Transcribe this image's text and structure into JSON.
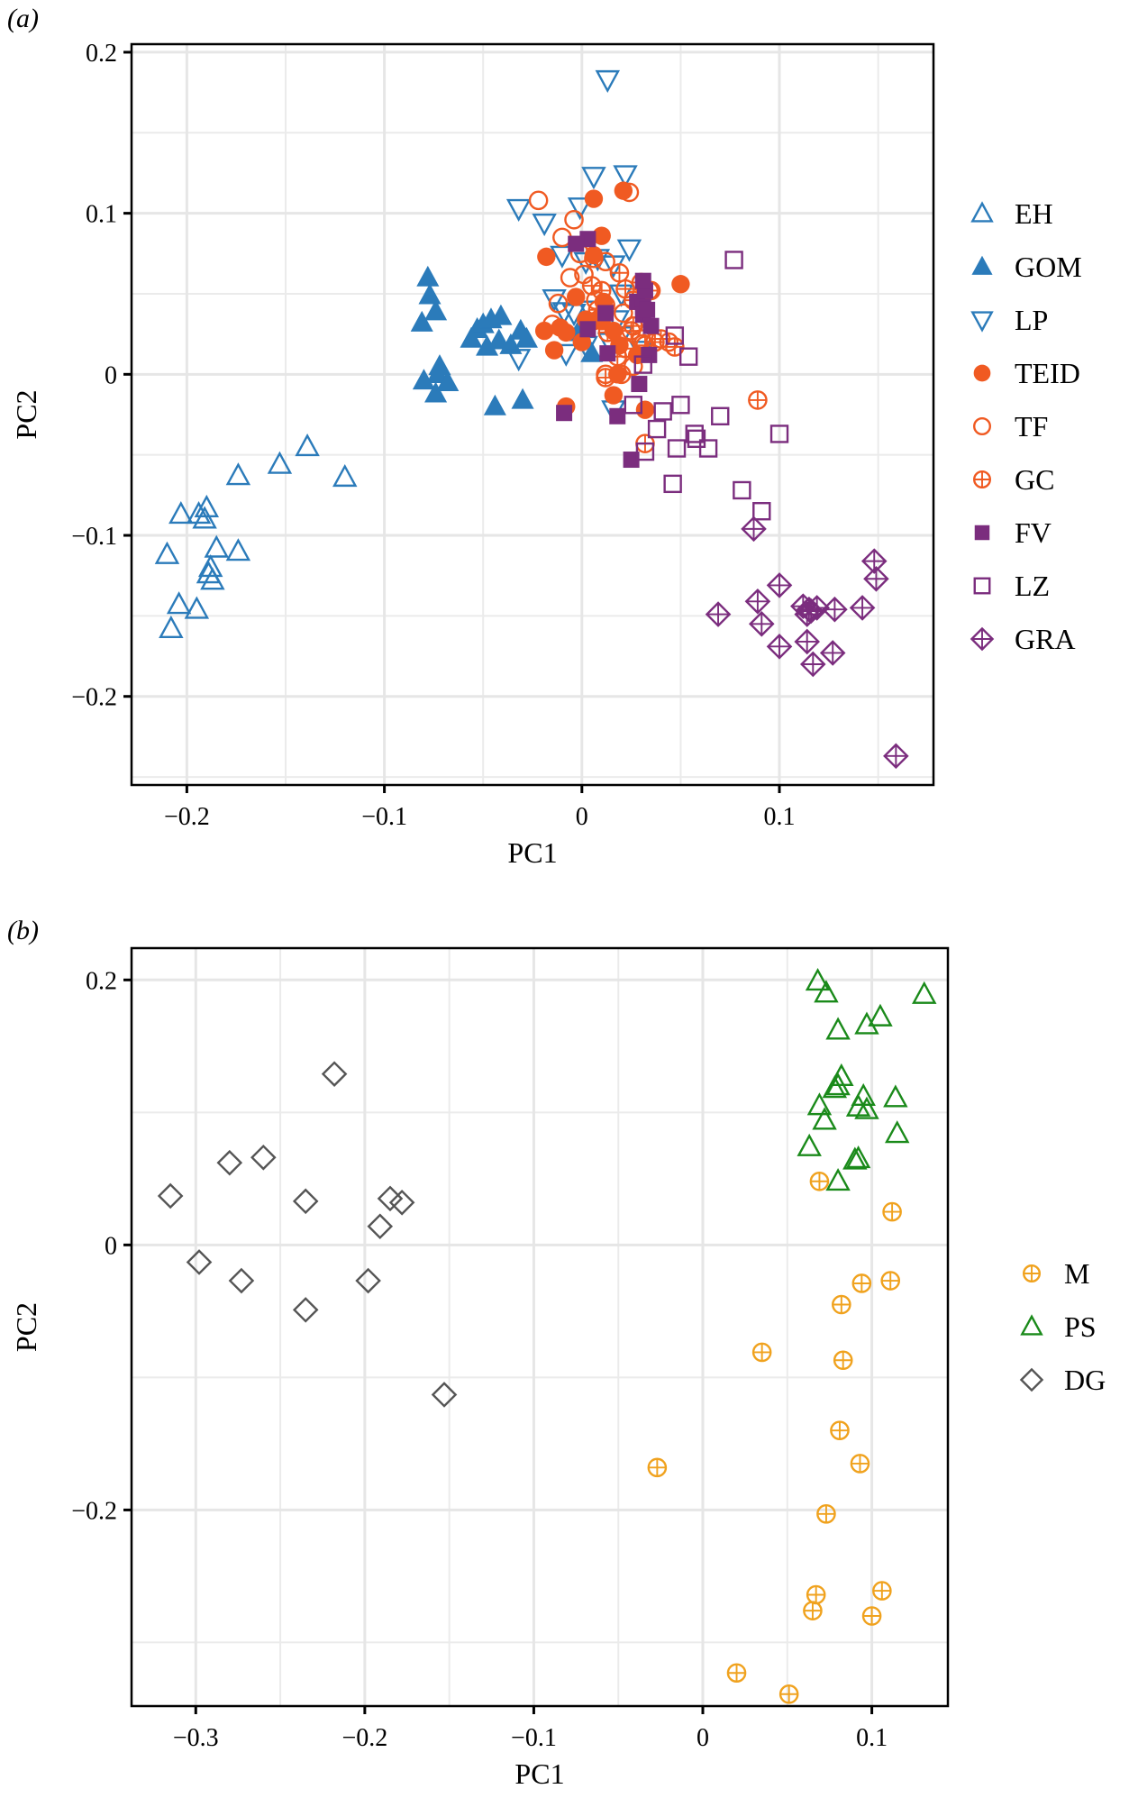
{
  "chart_data": [
    {
      "type": "scatter",
      "panel_label": "(a)",
      "xlabel": "PC1",
      "ylabel": "PC2",
      "xlim": [
        -0.228,
        0.178
      ],
      "ylim": [
        -0.255,
        0.205
      ],
      "xticks": [
        -0.2,
        -0.1,
        0,
        0.1
      ],
      "xtick_labels": [
        "−0.2",
        "−0.1",
        "0",
        "0.1"
      ],
      "yticks": [
        -0.2,
        -0.1,
        0,
        0.1,
        0.2
      ],
      "ytick_labels": [
        "−0.2",
        "−0.1",
        "0",
        "0.1",
        "0.2"
      ],
      "grid": true,
      "legend_position": "right",
      "series": [
        {
          "name": "EH",
          "marker": "triangle-open",
          "color": "#2b7bba",
          "points": [
            [
              -0.21,
              -0.112
            ],
            [
              -0.203,
              -0.087
            ],
            [
              -0.204,
              -0.143
            ],
            [
              -0.208,
              -0.158
            ],
            [
              -0.194,
              -0.087
            ],
            [
              -0.19,
              -0.083
            ],
            [
              -0.191,
              -0.09
            ],
            [
              -0.195,
              -0.146
            ],
            [
              -0.188,
              -0.12
            ],
            [
              -0.189,
              -0.124
            ],
            [
              -0.187,
              -0.128
            ],
            [
              -0.185,
              -0.108
            ],
            [
              -0.174,
              -0.11
            ],
            [
              -0.174,
              -0.063
            ],
            [
              -0.153,
              -0.056
            ],
            [
              -0.139,
              -0.045
            ],
            [
              -0.12,
              -0.064
            ]
          ]
        },
        {
          "name": "GOM",
          "marker": "triangle-filled",
          "color": "#2b7bba",
          "points": [
            [
              -0.078,
              0.06
            ],
            [
              -0.077,
              0.049
            ],
            [
              -0.074,
              0.039
            ],
            [
              -0.081,
              0.032
            ],
            [
              -0.072,
              0.005
            ],
            [
              -0.073,
              0.0
            ],
            [
              -0.08,
              -0.004
            ],
            [
              -0.074,
              -0.012
            ],
            [
              -0.068,
              -0.005
            ],
            [
              -0.056,
              0.022
            ],
            [
              -0.053,
              0.028
            ],
            [
              -0.05,
              0.031
            ],
            [
              -0.046,
              0.034
            ],
            [
              -0.041,
              0.036
            ],
            [
              -0.048,
              0.017
            ],
            [
              -0.042,
              0.021
            ],
            [
              -0.036,
              0.018
            ],
            [
              -0.031,
              0.027
            ],
            [
              -0.028,
              0.022
            ],
            [
              -0.044,
              -0.02
            ],
            [
              -0.03,
              -0.016
            ],
            [
              -0.002,
              0.026
            ],
            [
              0.005,
              0.013
            ]
          ]
        },
        {
          "name": "LP",
          "marker": "triangle-down-open",
          "color": "#2b7bba",
          "points": [
            [
              0.013,
              0.183
            ],
            [
              0.006,
              0.123
            ],
            [
              0.022,
              0.124
            ],
            [
              -0.032,
              0.103
            ],
            [
              -0.019,
              0.094
            ],
            [
              -0.001,
              0.104
            ],
            [
              0.024,
              0.078
            ],
            [
              -0.01,
              0.074
            ],
            [
              0.002,
              0.07
            ],
            [
              0.008,
              0.072
            ],
            [
              0.016,
              0.068
            ],
            [
              -0.014,
              0.047
            ],
            [
              -0.009,
              0.039
            ],
            [
              0.004,
              0.04
            ],
            [
              -0.004,
              0.038
            ],
            [
              0.018,
              0.034
            ],
            [
              0.02,
              0.024
            ],
            [
              -0.032,
              0.01
            ],
            [
              -0.008,
              0.013
            ],
            [
              0.014,
              0.02
            ],
            [
              0.002,
              0.018
            ],
            [
              0.016,
              -0.022
            ],
            [
              0.03,
              0.015
            ],
            [
              0.02,
              0.05
            ]
          ]
        },
        {
          "name": "TEID",
          "marker": "circle-filled",
          "color": "#f05a22",
          "points": [
            [
              0.006,
              0.109
            ],
            [
              0.021,
              0.114
            ],
            [
              0.01,
              0.086
            ],
            [
              -0.018,
              0.073
            ],
            [
              0.006,
              0.074
            ],
            [
              0.011,
              0.045
            ],
            [
              -0.003,
              0.048
            ],
            [
              0.05,
              0.056
            ],
            [
              -0.019,
              0.027
            ],
            [
              -0.011,
              0.029
            ],
            [
              -0.008,
              0.026
            ],
            [
              0.0,
              0.02
            ],
            [
              0.006,
              0.033
            ],
            [
              0.009,
              0.035
            ],
            [
              0.016,
              0.027
            ],
            [
              0.019,
              0.018
            ],
            [
              0.018,
              -0.0
            ],
            [
              -0.014,
              0.015
            ],
            [
              -0.008,
              -0.02
            ],
            [
              0.016,
              -0.013
            ],
            [
              0.032,
              -0.022
            ],
            [
              0.028,
              0.012
            ],
            [
              0.01,
              0.033
            ],
            [
              0.002,
              0.034
            ]
          ]
        },
        {
          "name": "TF",
          "marker": "circle-open",
          "color": "#f05a22",
          "points": [
            [
              -0.022,
              0.108
            ],
            [
              -0.01,
              0.085
            ],
            [
              -0.004,
              0.096
            ],
            [
              0.024,
              0.113
            ],
            [
              -0.001,
              0.075
            ],
            [
              0.006,
              0.072
            ],
            [
              -0.012,
              0.044
            ],
            [
              -0.006,
              0.06
            ],
            [
              0.001,
              0.062
            ],
            [
              0.012,
              0.07
            ],
            [
              0.034,
              0.052
            ],
            [
              0.044,
              0.02
            ],
            [
              -0.015,
              0.031
            ],
            [
              0.007,
              0.046
            ],
            [
              0.021,
              0.038
            ],
            [
              0.03,
              0.022
            ],
            [
              0.026,
              0.005
            ],
            [
              0.012,
              0.0
            ],
            [
              0.031,
              0.019
            ]
          ]
        },
        {
          "name": "GC",
          "marker": "circle-plus",
          "color": "#f05a22",
          "points": [
            [
              0.005,
              0.055
            ],
            [
              0.01,
              0.052
            ],
            [
              0.019,
              0.063
            ],
            [
              0.022,
              0.053
            ],
            [
              0.03,
              0.057
            ],
            [
              0.035,
              0.052
            ],
            [
              0.012,
              0.043
            ],
            [
              0.026,
              0.046
            ],
            [
              0.008,
              0.04
            ],
            [
              0.013,
              0.026
            ],
            [
              0.025,
              0.027
            ],
            [
              0.026,
              0.03
            ],
            [
              0.032,
              0.018
            ],
            [
              0.037,
              0.02
            ],
            [
              0.047,
              0.017
            ],
            [
              0.022,
              0.016
            ],
            [
              0.04,
              0.022
            ],
            [
              0.02,
              0.0
            ],
            [
              0.012,
              -0.002
            ],
            [
              0.032,
              -0.043
            ],
            [
              0.089,
              -0.016
            ],
            [
              0.018,
              0.011
            ]
          ]
        },
        {
          "name": "FV",
          "marker": "square-filled",
          "color": "#7b2d7e",
          "points": [
            [
              0.003,
              0.084
            ],
            [
              -0.003,
              0.081
            ],
            [
              0.012,
              0.038
            ],
            [
              0.003,
              0.028
            ],
            [
              0.028,
              0.045
            ],
            [
              0.031,
              0.042
            ],
            [
              0.031,
              0.037
            ],
            [
              0.032,
              0.052
            ],
            [
              0.033,
              0.04
            ],
            [
              0.035,
              0.03
            ],
            [
              0.034,
              0.012
            ],
            [
              0.029,
              -0.006
            ],
            [
              0.013,
              0.013
            ],
            [
              -0.009,
              -0.024
            ],
            [
              0.018,
              -0.026
            ],
            [
              0.025,
              -0.053
            ],
            [
              0.031,
              0.058
            ]
          ]
        },
        {
          "name": "LZ",
          "marker": "square-open",
          "color": "#7b2d7e",
          "points": [
            [
              0.077,
              0.071
            ],
            [
              0.047,
              0.024
            ],
            [
              0.054,
              0.011
            ],
            [
              0.026,
              -0.019
            ],
            [
              0.05,
              -0.019
            ],
            [
              0.041,
              -0.023
            ],
            [
              0.038,
              -0.034
            ],
            [
              0.057,
              -0.037
            ],
            [
              0.058,
              -0.04
            ],
            [
              0.064,
              -0.046
            ],
            [
              0.07,
              -0.026
            ],
            [
              0.081,
              -0.072
            ],
            [
              0.091,
              -0.085
            ],
            [
              0.1,
              -0.037
            ],
            [
              0.032,
              -0.048
            ],
            [
              0.046,
              -0.068
            ],
            [
              0.048,
              -0.046
            ],
            [
              0.031,
              0.006
            ]
          ]
        },
        {
          "name": "GRA",
          "marker": "diamond-plus",
          "color": "#7b2d7e",
          "points": [
            [
              0.087,
              -0.096
            ],
            [
              0.069,
              -0.149
            ],
            [
              0.089,
              -0.141
            ],
            [
              0.091,
              -0.155
            ],
            [
              0.1,
              -0.131
            ],
            [
              0.1,
              -0.169
            ],
            [
              0.112,
              -0.144
            ],
            [
              0.115,
              -0.146
            ],
            [
              0.116,
              -0.147
            ],
            [
              0.114,
              -0.149
            ],
            [
              0.119,
              -0.145
            ],
            [
              0.114,
              -0.166
            ],
            [
              0.117,
              -0.18
            ],
            [
              0.128,
              -0.146
            ],
            [
              0.127,
              -0.173
            ],
            [
              0.142,
              -0.145
            ],
            [
              0.148,
              -0.116
            ],
            [
              0.149,
              -0.127
            ],
            [
              0.159,
              -0.237
            ]
          ]
        }
      ]
    },
    {
      "type": "scatter",
      "panel_label": "(b)",
      "xlabel": "PC1",
      "ylabel": "PC2",
      "xlim": [
        -0.338,
        0.145
      ],
      "ylim": [
        -0.348,
        0.224
      ],
      "xticks": [
        -0.3,
        -0.2,
        -0.1,
        0,
        0.1
      ],
      "xtick_labels": [
        "−0.3",
        "−0.2",
        "−0.1",
        "0",
        "0.1"
      ],
      "yticks": [
        -0.2,
        0,
        0.2
      ],
      "ytick_labels": [
        "−0.2",
        "0",
        "0.2"
      ],
      "grid": true,
      "legend_position": "right",
      "series": [
        {
          "name": "M",
          "marker": "circle-plus",
          "color": "#f0a21e",
          "points": [
            [
              0.069,
              0.048
            ],
            [
              0.112,
              0.025
            ],
            [
              0.094,
              -0.029
            ],
            [
              0.111,
              -0.027
            ],
            [
              0.082,
              -0.045
            ],
            [
              0.083,
              -0.087
            ],
            [
              0.035,
              -0.081
            ],
            [
              0.081,
              -0.14
            ],
            [
              0.093,
              -0.165
            ],
            [
              -0.027,
              -0.168
            ],
            [
              0.073,
              -0.203
            ],
            [
              0.067,
              -0.264
            ],
            [
              0.106,
              -0.261
            ],
            [
              0.065,
              -0.276
            ],
            [
              0.1,
              -0.28
            ],
            [
              0.02,
              -0.323
            ],
            [
              0.051,
              -0.339
            ]
          ]
        },
        {
          "name": "PS",
          "marker": "triangle-open",
          "color": "#1a8a1a",
          "points": [
            [
              0.068,
              0.199
            ],
            [
              0.073,
              0.19
            ],
            [
              0.131,
              0.189
            ],
            [
              0.105,
              0.172
            ],
            [
              0.097,
              0.166
            ],
            [
              0.08,
              0.162
            ],
            [
              0.082,
              0.127
            ],
            [
              0.08,
              0.12
            ],
            [
              0.078,
              0.118
            ],
            [
              0.095,
              0.112
            ],
            [
              0.114,
              0.111
            ],
            [
              0.092,
              0.104
            ],
            [
              0.097,
              0.102
            ],
            [
              0.069,
              0.105
            ],
            [
              0.072,
              0.094
            ],
            [
              0.063,
              0.074
            ],
            [
              0.115,
              0.084
            ],
            [
              0.092,
              0.065
            ],
            [
              0.09,
              0.064
            ],
            [
              0.08,
              0.048
            ]
          ]
        },
        {
          "name": "DG",
          "marker": "diamond-open",
          "color": "#555555",
          "points": [
            [
              -0.218,
              0.129
            ],
            [
              -0.26,
              0.066
            ],
            [
              -0.28,
              0.062
            ],
            [
              -0.315,
              0.037
            ],
            [
              -0.235,
              0.033
            ],
            [
              -0.185,
              0.035
            ],
            [
              -0.178,
              0.032
            ],
            [
              -0.191,
              0.014
            ],
            [
              -0.298,
              -0.013
            ],
            [
              -0.273,
              -0.027
            ],
            [
              -0.198,
              -0.027
            ],
            [
              -0.235,
              -0.049
            ],
            [
              -0.153,
              -0.113
            ]
          ]
        }
      ]
    }
  ]
}
